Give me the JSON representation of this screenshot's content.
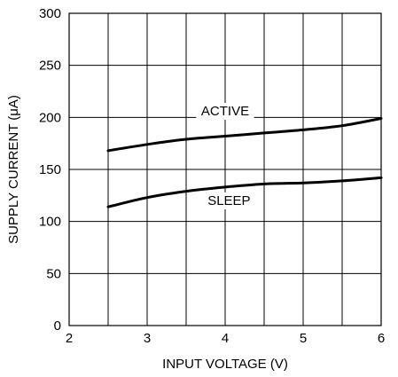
{
  "chart_data": {
    "type": "line",
    "xlabel": "INPUT VOLTAGE (V)",
    "ylabel": "SUPPLY CURRENT (μA)",
    "xlim": [
      2,
      6
    ],
    "ylim": [
      0,
      300
    ],
    "x_ticks": [
      2,
      3,
      4,
      5,
      6
    ],
    "y_ticks": [
      0,
      50,
      100,
      150,
      200,
      250,
      300
    ],
    "x_tick_labels": [
      "2",
      "3",
      "4",
      "5",
      "6"
    ],
    "y_tick_labels": [
      "0",
      "50",
      "100",
      "150",
      "200",
      "250",
      "300"
    ],
    "grid": true,
    "series": [
      {
        "name": "ACTIVE",
        "x": [
          2.5,
          3.0,
          3.5,
          4.0,
          4.5,
          5.0,
          5.5,
          6.0
        ],
        "values": [
          168,
          174,
          179,
          182,
          185,
          188,
          192,
          199
        ]
      },
      {
        "name": "SLEEP",
        "x": [
          2.5,
          3.0,
          3.5,
          4.0,
          4.5,
          5.0,
          5.5,
          6.0
        ],
        "values": [
          114,
          123,
          129,
          133,
          136,
          137,
          139,
          142
        ]
      }
    ]
  }
}
